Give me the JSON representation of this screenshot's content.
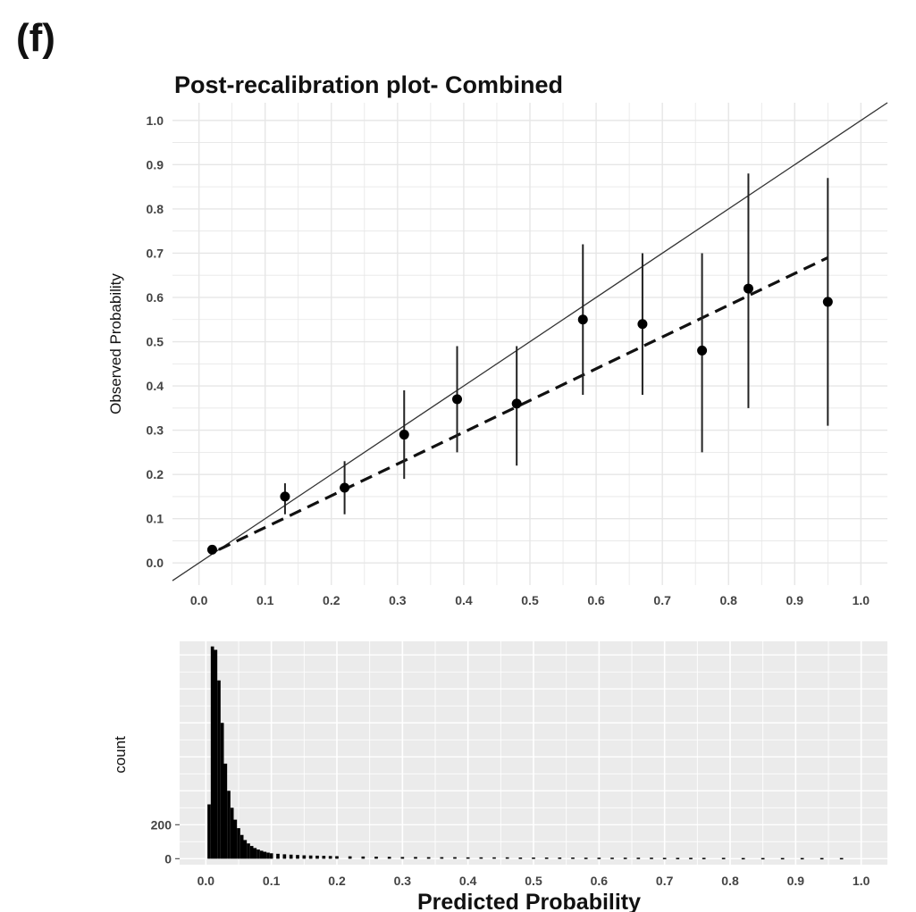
{
  "figure": {
    "panel_label": "(f)"
  },
  "chart_data": [
    {
      "type": "scatter",
      "title": "Post-recalibration plot- Combined",
      "xlabel": "",
      "ylabel": "Observed Probability",
      "xlim": [
        -0.04,
        1.04
      ],
      "ylim": [
        -0.05,
        1.04
      ],
      "x_ticks": [
        "0.0",
        "0.1",
        "0.2",
        "0.3",
        "0.4",
        "0.5",
        "0.6",
        "0.7",
        "0.8",
        "0.9",
        "1.0"
      ],
      "y_ticks": [
        "0.0",
        "0.1",
        "0.2",
        "0.3",
        "0.4",
        "0.5",
        "0.6",
        "0.7",
        "0.8",
        "0.9",
        "1.0"
      ],
      "grid": true,
      "points": [
        {
          "x": 0.02,
          "y": 0.03,
          "lo": 0.025,
          "hi": 0.04
        },
        {
          "x": 0.13,
          "y": 0.15,
          "lo": 0.11,
          "hi": 0.18
        },
        {
          "x": 0.22,
          "y": 0.17,
          "lo": 0.11,
          "hi": 0.23
        },
        {
          "x": 0.31,
          "y": 0.29,
          "lo": 0.19,
          "hi": 0.39
        },
        {
          "x": 0.39,
          "y": 0.37,
          "lo": 0.25,
          "hi": 0.49
        },
        {
          "x": 0.48,
          "y": 0.36,
          "lo": 0.22,
          "hi": 0.49
        },
        {
          "x": 0.58,
          "y": 0.55,
          "lo": 0.38,
          "hi": 0.72
        },
        {
          "x": 0.67,
          "y": 0.54,
          "lo": 0.38,
          "hi": 0.7
        },
        {
          "x": 0.76,
          "y": 0.48,
          "lo": 0.25,
          "hi": 0.7
        },
        {
          "x": 0.83,
          "y": 0.62,
          "lo": 0.35,
          "hi": 0.88
        },
        {
          "x": 0.95,
          "y": 0.59,
          "lo": 0.31,
          "hi": 0.87
        }
      ],
      "reference_line": {
        "style": "solid",
        "from": [
          -0.04,
          -0.04
        ],
        "to": [
          1.04,
          1.04
        ]
      },
      "calibration_curve": {
        "style": "dashed",
        "x": [
          0.03,
          0.95
        ],
        "y": [
          0.03,
          0.69
        ]
      }
    },
    {
      "type": "bar",
      "title": "",
      "xlabel": "Predicted Probability",
      "ylabel": "count",
      "xlim": [
        -0.04,
        1.04
      ],
      "ylim": [
        -35,
        1280
      ],
      "x_ticks": [
        "0.0",
        "0.1",
        "0.2",
        "0.3",
        "0.4",
        "0.5",
        "0.6",
        "0.7",
        "0.8",
        "0.9",
        "1.0"
      ],
      "y_ticks": [
        {
          "value": 0,
          "label": "0"
        },
        {
          "value": 200,
          "label": "200"
        }
      ],
      "background": "#ebebeb",
      "bin_width": 0.005,
      "x": [
        0.005,
        0.01,
        0.015,
        0.02,
        0.025,
        0.03,
        0.035,
        0.04,
        0.045,
        0.05,
        0.055,
        0.06,
        0.065,
        0.07,
        0.075,
        0.08,
        0.085,
        0.09,
        0.095,
        0.1,
        0.11,
        0.12,
        0.13,
        0.14,
        0.15,
        0.16,
        0.17,
        0.18,
        0.19,
        0.2,
        0.22,
        0.24,
        0.26,
        0.28,
        0.3,
        0.32,
        0.34,
        0.36,
        0.38,
        0.4,
        0.42,
        0.44,
        0.46,
        0.48,
        0.5,
        0.52,
        0.54,
        0.56,
        0.58,
        0.6,
        0.62,
        0.64,
        0.66,
        0.68,
        0.7,
        0.72,
        0.74,
        0.76,
        0.79,
        0.82,
        0.85,
        0.88,
        0.91,
        0.94,
        0.97
      ],
      "values": [
        320,
        1250,
        1230,
        1050,
        800,
        560,
        400,
        300,
        230,
        180,
        140,
        110,
        90,
        75,
        63,
        54,
        47,
        41,
        36,
        32,
        29,
        26,
        24,
        22,
        20,
        19,
        18,
        17,
        16,
        15,
        14,
        13,
        12,
        11,
        10,
        10,
        9,
        9,
        9,
        8,
        8,
        8,
        8,
        7,
        7,
        7,
        7,
        7,
        6,
        6,
        6,
        6,
        6,
        6,
        5,
        5,
        5,
        5,
        5,
        4,
        4,
        4,
        4,
        4,
        4
      ]
    }
  ]
}
